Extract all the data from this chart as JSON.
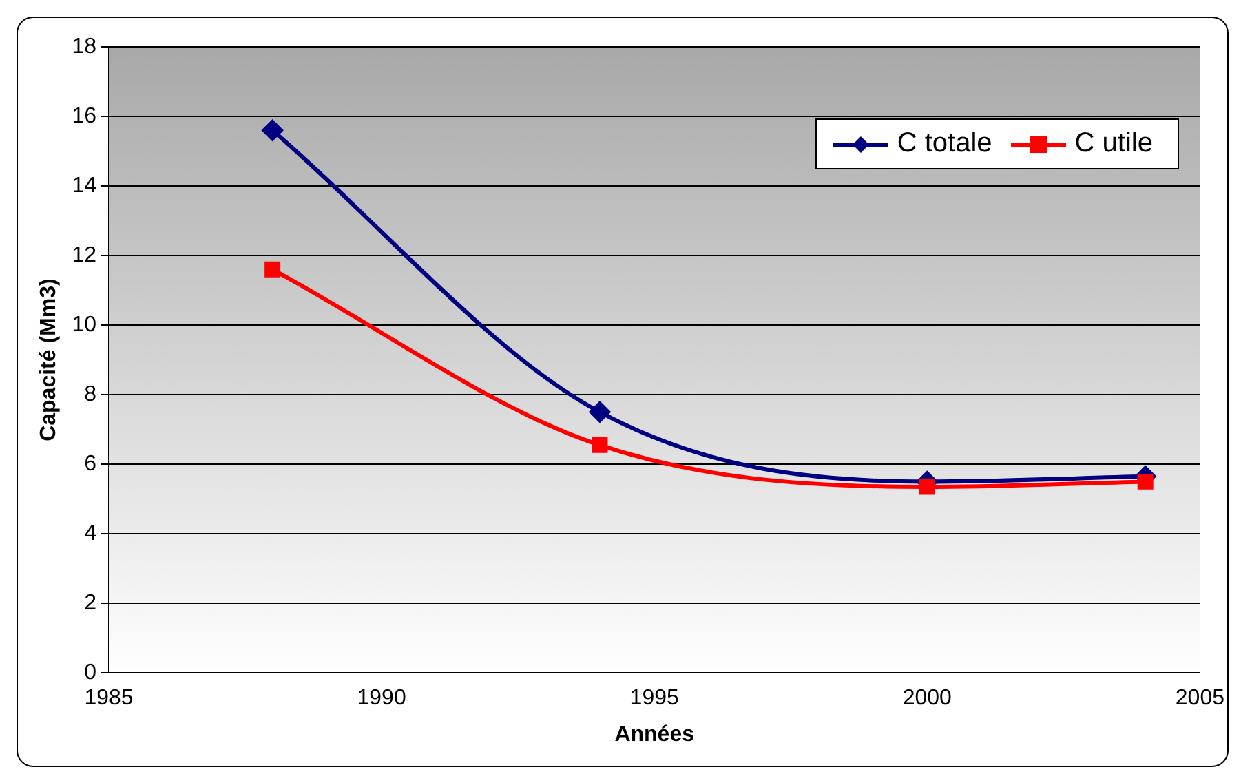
{
  "chart_data": {
    "type": "line",
    "xlabel": "Années",
    "ylabel": "Capacité (Mm3)",
    "x": [
      1988,
      1994,
      2000,
      2004
    ],
    "series": [
      {
        "name": "C totale",
        "color": "#000080",
        "marker": "diamond",
        "values": [
          15.6,
          7.5,
          5.5,
          5.65
        ]
      },
      {
        "name": "C utile",
        "color": "#ff0000",
        "marker": "square",
        "values": [
          11.6,
          6.55,
          5.35,
          5.5
        ]
      }
    ],
    "xlim": [
      1985,
      2005
    ],
    "xticks": [
      1985,
      1990,
      1995,
      2000,
      2005
    ],
    "ylim": [
      0,
      18
    ],
    "yticks": [
      0,
      2,
      4,
      6,
      8,
      10,
      12,
      14,
      16,
      18
    ],
    "grid": "y",
    "legend": "top right",
    "line_style": "solid"
  }
}
